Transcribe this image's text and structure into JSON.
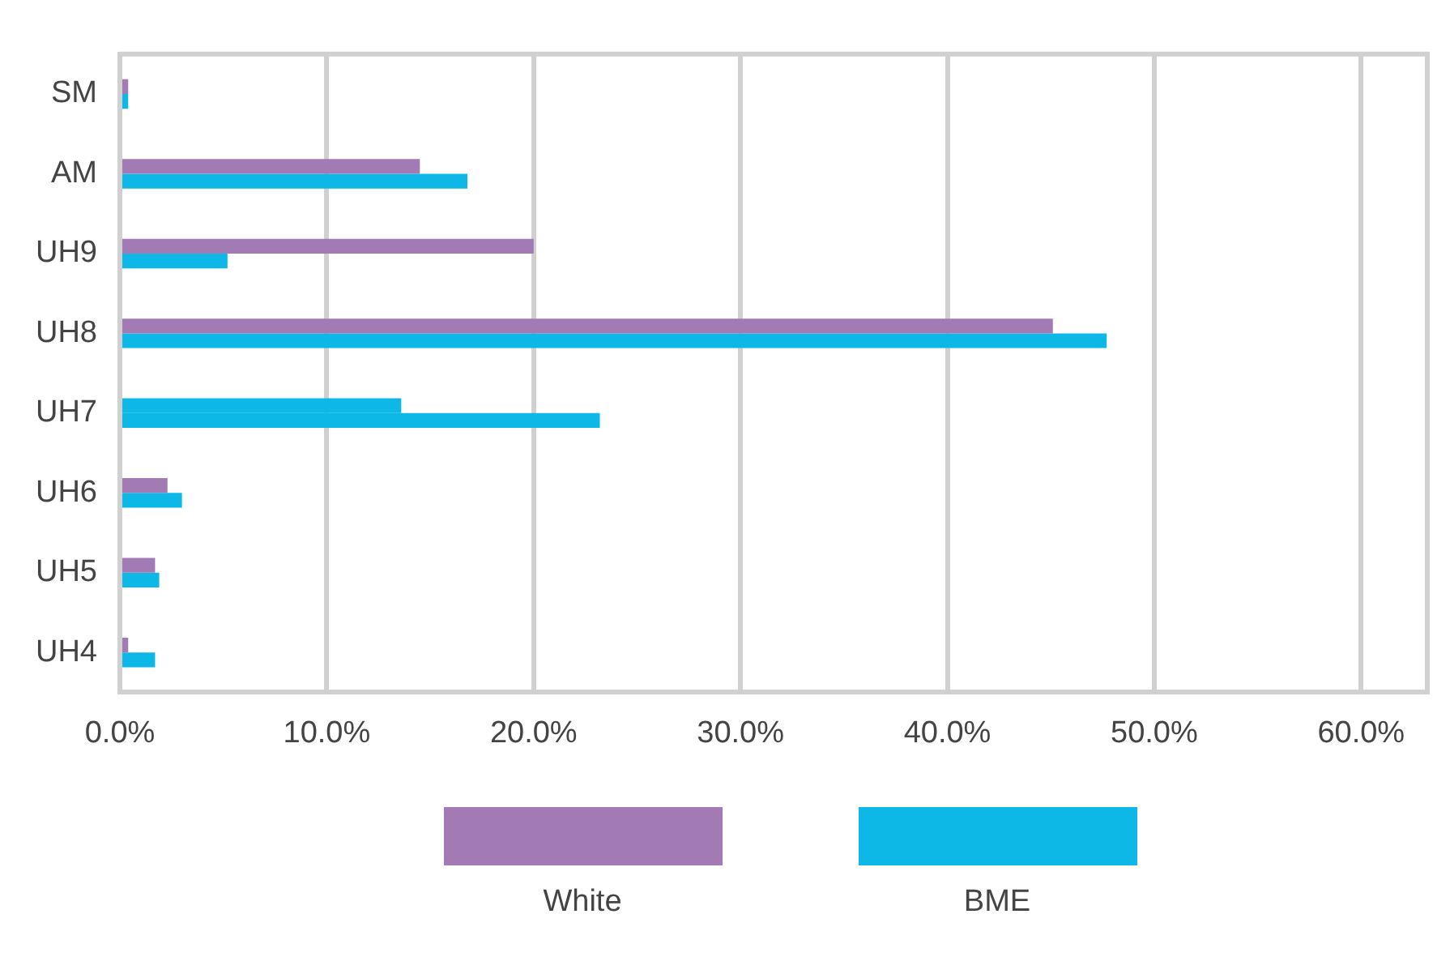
{
  "chart_data": {
    "type": "bar",
    "orientation": "horizontal",
    "categories": [
      "SM",
      "AM",
      "UH9",
      "UH8",
      "UH7",
      "UH6",
      "UH5",
      "UH4"
    ],
    "series": [
      {
        "name": "White",
        "color": "#a27bb5",
        "colors": [
          "#a27bb5",
          "#a27bb5",
          "#a27bb5",
          "#a27bb5",
          "#0db8e6",
          "#a27bb5",
          "#a27bb5",
          "#a27bb5"
        ],
        "values": [
          0.4,
          14.5,
          20.0,
          45.1,
          13.6,
          2.3,
          1.7,
          0.4
        ]
      },
      {
        "name": "BME",
        "color": "#0db8e6",
        "values": [
          0.4,
          16.8,
          5.2,
          47.7,
          23.2,
          3.0,
          1.9,
          1.7
        ]
      }
    ],
    "xlim": [
      0,
      63.2
    ],
    "xticks": [
      {
        "value": 0,
        "label": "0.0%"
      },
      {
        "value": 10,
        "label": "10.0%"
      },
      {
        "value": 20,
        "label": "20.0%"
      },
      {
        "value": 30,
        "label": "30.0%"
      },
      {
        "value": 40,
        "label": "40.0%"
      },
      {
        "value": 50,
        "label": "50.0%"
      },
      {
        "value": 60,
        "label": "60.0%"
      }
    ],
    "grid": "x",
    "legend": "bottom"
  }
}
